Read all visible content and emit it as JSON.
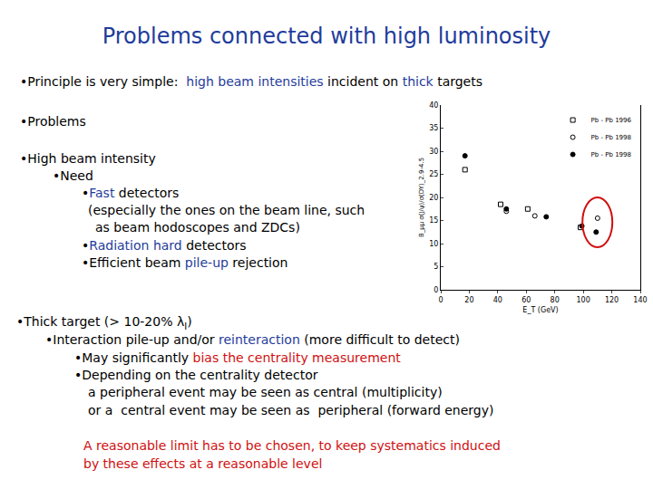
{
  "header": {
    "title": "Problems connected with high luminosity"
  },
  "lines": [
    [
      {
        "text": "•Principle is very simple:  "
      },
      {
        "text": "high beam intensities",
        "color": "blue"
      },
      {
        "text": " incident on "
      },
      {
        "text": "thick",
        "color": "blue"
      },
      {
        "text": " targets"
      }
    ],
    [
      {
        "text": "•Problems"
      }
    ],
    [
      {
        "text": "•High beam intensity"
      }
    ],
    [
      {
        "text": "•Need"
      }
    ],
    [
      {
        "text": "•"
      },
      {
        "text": "Fast",
        "color": "blue"
      },
      {
        "text": " detectors"
      }
    ],
    [
      {
        "text": "(especially the ones on the beam line, such"
      }
    ],
    [
      {
        "text": "as beam hodoscopes and ZDCs)"
      }
    ],
    [
      {
        "text": "•"
      },
      {
        "text": "Radiation hard",
        "color": "blue"
      },
      {
        "text": " detectors"
      }
    ],
    [
      {
        "text": "•Efficient beam "
      },
      {
        "text": "pile-up",
        "color": "blue"
      },
      {
        "text": " rejection"
      }
    ],
    [
      {
        "text": "•Thick target (> 10-20% λ"
      },
      {
        "text": "I",
        "sub": true
      },
      {
        "text": ")"
      }
    ],
    [
      {
        "text": "•Interaction pile-up and/or "
      },
      {
        "text": "reinteraction",
        "color": "blue"
      },
      {
        "text": " (more difficult to detect)"
      }
    ],
    [
      {
        "text": "•May significantly "
      },
      {
        "text": "bias the centrality measurement",
        "color": "red"
      }
    ],
    [
      {
        "text": "•Depending on the centrality detector"
      }
    ],
    [
      {
        "text": "a peripheral event may be seen as central (multiplicity)"
      }
    ],
    [
      {
        "text": "or a  central event may be seen as  peripheral (forward energy)"
      }
    ],
    [
      {
        "text": "A reasonable limit has to be chosen, to keep systematics induced",
        "color": "red"
      }
    ],
    [
      {
        "text": "by these effects at a reasonable level",
        "color": "red"
      }
    ]
  ],
  "chart_data": {
    "type": "scatter",
    "x_label": "E_T (GeV)",
    "y_label": "B_μμ σ(J/ψ)/σ(DY)_2.9-4.5",
    "xlim": [
      0,
      140
    ],
    "xticks": [
      0,
      20,
      40,
      60,
      80,
      100,
      120,
      140
    ],
    "ylim": [
      0,
      40
    ],
    "yticks": [
      0,
      5,
      10,
      15,
      20,
      25,
      30,
      35,
      40
    ],
    "legend": "top right",
    "series": [
      {
        "name": "Pb - Pb 1996",
        "marker": "square-open",
        "color": "#000000",
        "x": [
          17,
          42,
          61,
          98
        ],
        "values": [
          26,
          18.5,
          17.5,
          13.5
        ]
      },
      {
        "name": "Pb - Pb 1998",
        "marker": "circle-open",
        "color": "#000000",
        "x": [
          46,
          66,
          110
        ],
        "values": [
          17,
          16,
          15.5
        ]
      },
      {
        "name": "Pb - Pb 1998",
        "marker": "circle",
        "color": "#000000",
        "x": [
          17,
          46,
          74,
          99,
          109
        ],
        "values": [
          29,
          17.5,
          15.8,
          13.8,
          12.5
        ]
      }
    ]
  }
}
